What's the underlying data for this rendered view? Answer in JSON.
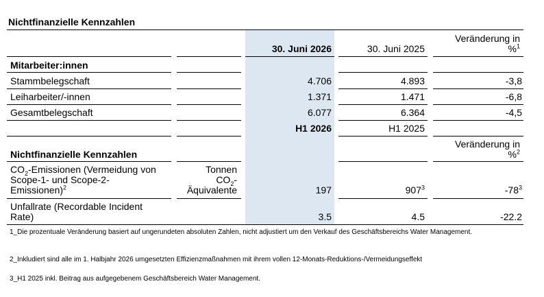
{
  "title": "Nichtfinanzielle Kennzahlen",
  "header": {
    "col1": "30. Juni 2026",
    "col2": "30. Juni 2025",
    "change_line1": "Veränderung in",
    "change_line2": "%",
    "change_sup": "1"
  },
  "employees": {
    "section": "Mitarbeiter:innen",
    "rows": [
      {
        "label": "Stammbelegschaft",
        "v1": "4.706",
        "v2": "4.893",
        "change": "-3,8"
      },
      {
        "label": "Leiharbeiter/-innen",
        "v1": "1.371",
        "v2": "1.471",
        "change": "-6,8"
      },
      {
        "label": "Gesamtbelegschaft",
        "v1": "6.077",
        "v2": "6.364",
        "change": "-4,5"
      }
    ]
  },
  "period": {
    "col1": "H1 2026",
    "col2": "H1 2025"
  },
  "second": {
    "section": "Nichtfinanzielle Kennzahlen",
    "change_line1": "Veränderung in",
    "change_line2": "%",
    "change_sup": "2"
  },
  "co2": {
    "label_a": "CO",
    "label_sub": "2",
    "label_b": "-Emissionen (Vermeidung von",
    "label_line2": "Scope-1- und Scope-2-",
    "label_line3": "Emissionen)",
    "label_sup": "2",
    "unit_line1": "Tonnen",
    "unit_line2a": "CO",
    "unit_line2_sub": "2",
    "unit_line2b": "-",
    "unit_line3": "Äquivalente",
    "v1": "197",
    "v2": "907",
    "v2_sup": "3",
    "change": "-78",
    "change_sup": "3"
  },
  "accident": {
    "label_line1": "Unfallrate (Recordable Incident",
    "label_line2": "Rate)",
    "v1": "3.5",
    "v2": "4.5",
    "change": "-22.2"
  },
  "footnotes": [
    "1_Die prozentuale Veränderung basiert auf ungerundeten absoluten Zahlen, nicht adjustiert um den Verkauf des Geschäftsbereichs Water Management.",
    "2_Inkludiert sind alle im 1. Halbjahr 2026 umgesetzten Effizienzmaßnahmen mit ihrem vollen 12-Monats-Reduktions-/Vermeidungseffekt",
    "3_H1 2025 inkl. Beitrag aus aufgegebenem Geschäftsbereich Water Management."
  ]
}
